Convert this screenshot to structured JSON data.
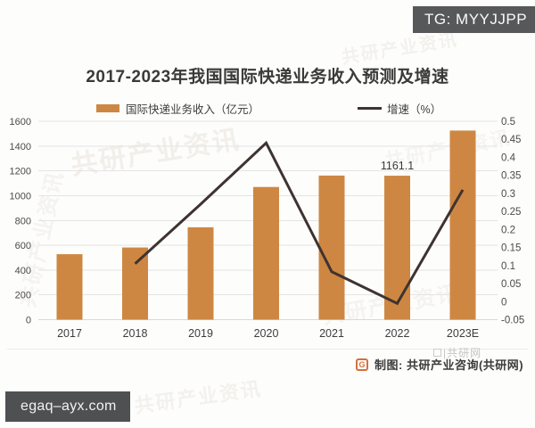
{
  "overlay": {
    "tg_badge": "TG: MYYJJPP",
    "site_badge": "egaq–ayx.com"
  },
  "title": "2017-2023年我国国际快递业务收入预测及增速",
  "watermark": {
    "text": "共研产业资讯",
    "footer_text": "|共研网"
  },
  "footer": {
    "logo_glyph": "G",
    "credit": "制图: 共研产业咨询(共研网)"
  },
  "colors": {
    "bar": "#CE8742",
    "line": "#3E3330",
    "grid": "#E4E4E4",
    "axis_text": "#4A4A4A",
    "badge_bg": "#57585A"
  },
  "chart_data": {
    "type": "bar+line",
    "title": "2017-2023年我国国际快递业务收入预测及增速",
    "categories": [
      "2017",
      "2018",
      "2019",
      "2020",
      "2021",
      "2022",
      "2023E"
    ],
    "series": [
      {
        "name": "国际快递业务收入（亿元）",
        "type": "bar",
        "color": "#CE8742",
        "axis": "left",
        "values": [
          528,
          582,
          745,
          1070,
          1162,
          1161.1,
          1525
        ]
      },
      {
        "name": "增速（%）",
        "type": "line",
        "color": "#3E3330",
        "axis": "right",
        "values": [
          null,
          0.105,
          0.27,
          0.44,
          0.083,
          -0.005,
          0.31
        ]
      }
    ],
    "point_labels": [
      {
        "series": 0,
        "category": "2022",
        "text": "1161.1"
      }
    ],
    "left_axis": {
      "min": 0,
      "max": 1600,
      "step": 200
    },
    "right_axis": {
      "min": -0.05,
      "max": 0.5,
      "step": 0.05
    },
    "grid": true,
    "legend_position": "top"
  }
}
